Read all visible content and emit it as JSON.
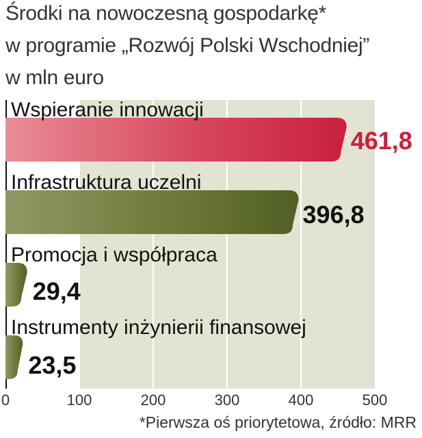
{
  "chart_data": {
    "type": "bar",
    "orientation": "horizontal",
    "title_lines": [
      "Środki na nowoczesną gospodarkę*",
      "w programie „Rozwój Polski Wschodniej”",
      "w mln euro"
    ],
    "categories": [
      "Wspieranie innowacji",
      "Infrastruktura uczelni",
      "Promocja i współpraca",
      "Instrumenty inżynierii finansowej"
    ],
    "values": [
      461.8,
      396.8,
      29.4,
      23.5
    ],
    "value_labels": [
      "461,8",
      "396,8",
      "29,4",
      "23,5"
    ],
    "xlim": [
      0,
      500
    ],
    "xticks": [
      "0",
      "100",
      "200",
      "300",
      "400",
      "500"
    ],
    "grid": true,
    "colors": {
      "highlight_bar": "#c8203d",
      "highlight_value": "#c8203d",
      "other_bars": "#5c6a2c",
      "other_values": "#111111",
      "plot_background": "#e3e3d3",
      "grid": "#ffffff"
    },
    "footnote": "*Pierwsza oś priorytetowa, źródło: MRR"
  }
}
